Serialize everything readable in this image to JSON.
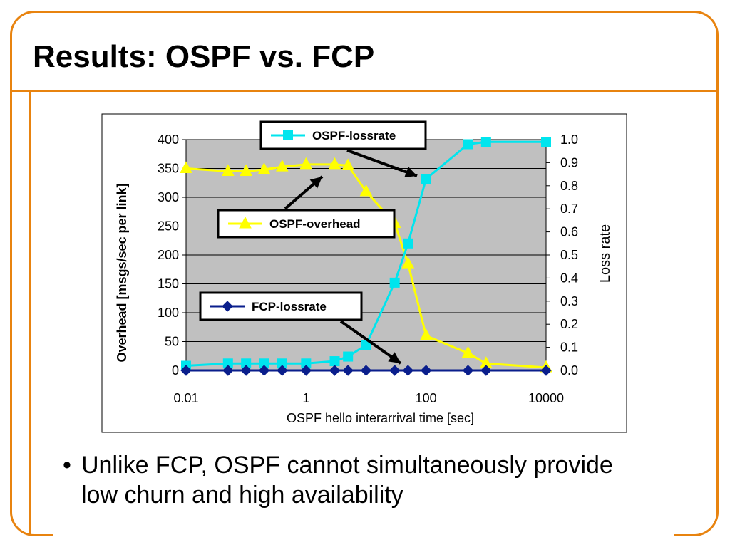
{
  "slide": {
    "title": "Results: OSPF vs. FCP",
    "bullet": "Unlike FCP, OSPF cannot simultaneously provide low churn and high availability",
    "bullet_marker": "•",
    "colors": {
      "frame": "#E8830F"
    }
  },
  "chart_data": {
    "type": "line",
    "xscale": "log",
    "xlabel": "OSPF hello interarrival time [sec]",
    "ylabel_left": "Overhead [msgs/sec per link]",
    "ylabel_right": "Loss rate",
    "xlim": [
      0.01,
      10000
    ],
    "ylim_left": [
      0,
      400
    ],
    "ylim_right": [
      0.0,
      1.0
    ],
    "x_ticks": [
      "0.01",
      "1",
      "100",
      "10000"
    ],
    "y_ticks_left": [
      "0",
      "50",
      "100",
      "150",
      "200",
      "250",
      "300",
      "350",
      "400"
    ],
    "y_ticks_right": [
      "0.0",
      "0.1",
      "0.2",
      "0.3",
      "0.4",
      "0.5",
      "0.6",
      "0.7",
      "0.8",
      "0.9",
      "1.0"
    ],
    "grid": true,
    "plot_background": "#C0C0C0",
    "series": [
      {
        "name": "OSPF-lossrate",
        "axis": "right",
        "marker": "square",
        "color": "#00E5EE",
        "x": [
          0.01,
          0.05,
          0.1,
          0.2,
          0.4,
          1,
          3,
          5,
          10,
          30,
          50,
          100,
          500,
          1000,
          10000
        ],
        "y": [
          0.02,
          0.03,
          0.03,
          0.03,
          0.03,
          0.03,
          0.04,
          0.06,
          0.11,
          0.38,
          0.55,
          0.83,
          0.98,
          0.99,
          0.99
        ]
      },
      {
        "name": "OSPF-overhead",
        "axis": "left",
        "marker": "triangle",
        "color": "#FFFF00",
        "x": [
          0.01,
          0.05,
          0.1,
          0.2,
          0.4,
          1,
          3,
          5,
          10,
          30,
          50,
          100,
          500,
          1000,
          10000
        ],
        "y": [
          350,
          345,
          345,
          348,
          353,
          357,
          357,
          355,
          310,
          255,
          185,
          60,
          30,
          12,
          5
        ]
      },
      {
        "name": "FCP-lossrate",
        "axis": "right",
        "marker": "diamond",
        "color": "#0A1E8C",
        "x": [
          0.01,
          0.05,
          0.1,
          0.2,
          0.4,
          1,
          3,
          5,
          10,
          30,
          50,
          100,
          500,
          1000,
          10000
        ],
        "y": [
          0,
          0,
          0,
          0,
          0,
          0,
          0,
          0,
          0,
          0,
          0,
          0,
          0,
          0,
          0
        ]
      }
    ]
  }
}
